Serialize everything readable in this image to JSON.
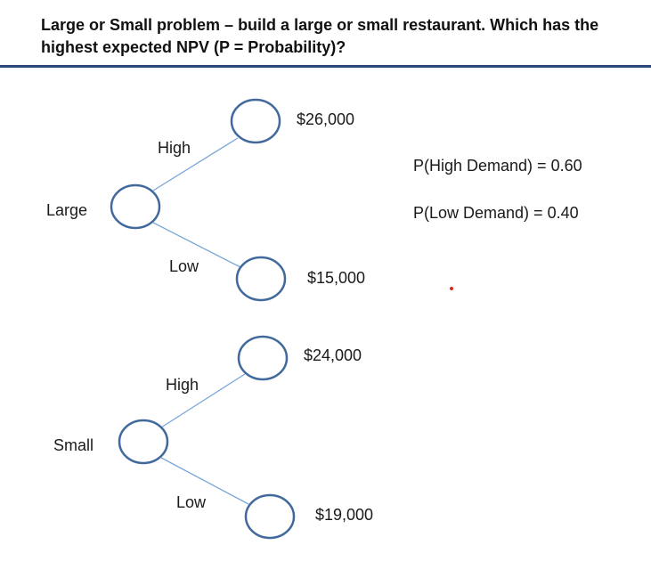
{
  "title": "Large or Small problem – build a large or small restaurant. Which has the highest expected NPV (P = Probability)?",
  "options": [
    {
      "label": "Large",
      "branches": [
        {
          "label": "High",
          "payoff": "$26,000"
        },
        {
          "label": "Low",
          "payoff": "$15,000"
        }
      ]
    },
    {
      "label": "Small",
      "branches": [
        {
          "label": "High",
          "payoff": "$24,000"
        },
        {
          "label": "Low",
          "payoff": "$19,000"
        }
      ]
    }
  ],
  "probabilities": {
    "high": "P(High Demand) = 0.60",
    "low": "P(Low Demand) = 0.40"
  },
  "colors": {
    "node_stroke": "#41699b",
    "branch_line": "#7aa7d9",
    "title_rule": "#2b4a7a",
    "marker": "#e0211c"
  }
}
